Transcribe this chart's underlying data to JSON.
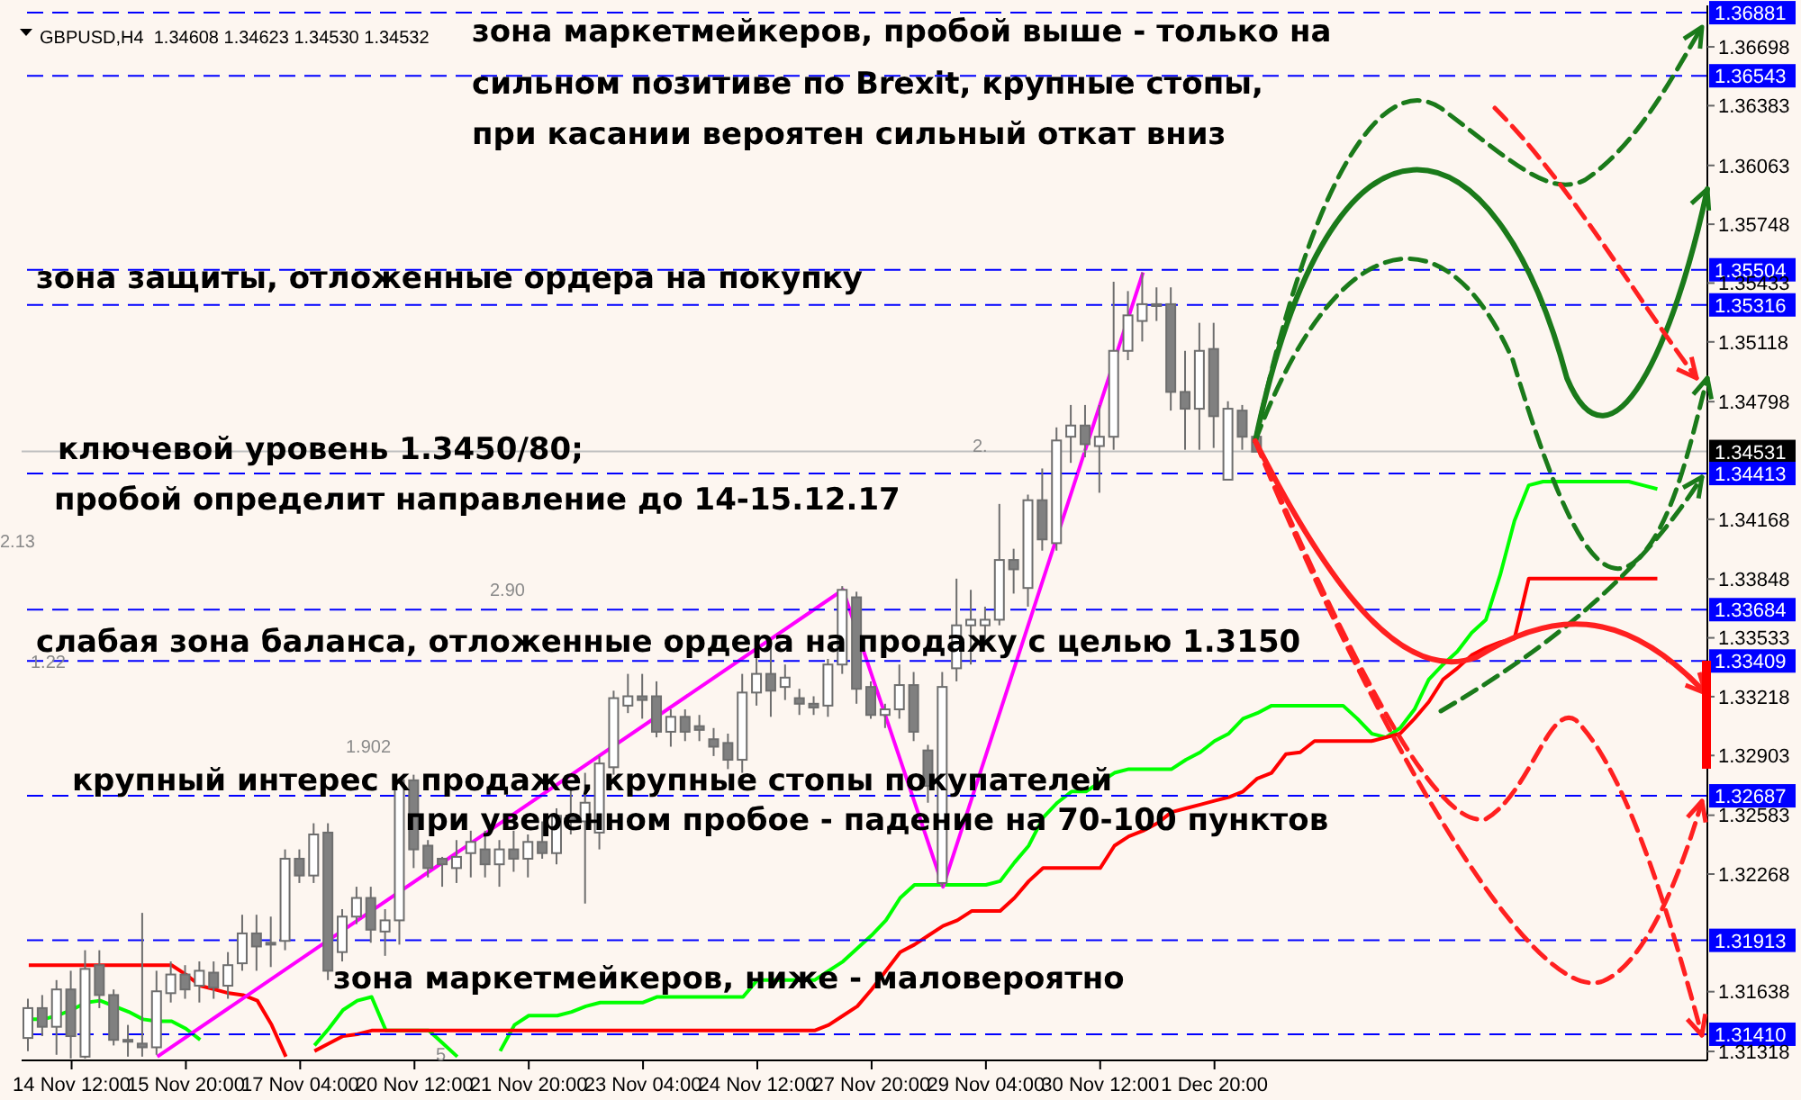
{
  "chart_data": {
    "type": "candlestick",
    "categories": [
      null,
      null,
      null,
      "14 Nov 12:00",
      null,
      null,
      null,
      null,
      null,
      null,
      null,
      "15 Nov 20:00",
      null,
      null,
      null,
      null,
      null,
      null,
      null,
      "17 Nov 04:00",
      null,
      null,
      null,
      null,
      null,
      null,
      null,
      "20 Nov 12:00",
      null,
      null,
      null,
      null,
      null,
      null,
      null,
      "21 Nov 20:00",
      null,
      null,
      null,
      null,
      null,
      null,
      null,
      "23 Nov 04:00",
      null,
      null,
      null,
      null,
      null,
      null,
      null,
      "24 Nov 12:00",
      null,
      null,
      null,
      null,
      null,
      null,
      null,
      "27 Nov 20:00",
      null,
      null,
      null,
      null,
      null,
      null,
      null,
      "29 Nov 04:00",
      null,
      null,
      null,
      null,
      null,
      null,
      null,
      "30 Nov 12:00",
      null,
      null,
      null,
      null,
      null,
      null,
      null,
      "1 Dec 20:00",
      null,
      null,
      null,
      null,
      null,
      null,
      null,
      null,
      null,
      null,
      null,
      null,
      null,
      null,
      null,
      null,
      null,
      null,
      null,
      null,
      null,
      null,
      null,
      null,
      null,
      null,
      null,
      null,
      null,
      null,
      null,
      null,
      null,
      null
    ],
    "ohlc": [
      [
        1.3139,
        1.316,
        1.3132,
        1.3155
      ],
      [
        1.3155,
        1.3162,
        1.314,
        1.3145
      ],
      [
        1.3145,
        1.317,
        1.313,
        1.3165
      ],
      [
        1.3165,
        1.3175,
        1.3128,
        1.314
      ],
      [
        1.3129,
        1.3186,
        1.3128,
        1.3176
      ],
      [
        1.3178,
        1.3186,
        1.3155,
        1.3162
      ],
      [
        1.3162,
        1.3165,
        1.3135,
        1.3138
      ],
      [
        1.3138,
        1.3146,
        1.3129,
        1.3137
      ],
      [
        1.3136,
        1.3206,
        1.3129,
        1.3134
      ],
      [
        1.3134,
        1.3175,
        1.313,
        1.3164
      ],
      [
        1.3163,
        1.318,
        1.3158,
        1.3173
      ],
      [
        1.3173,
        1.3178,
        1.316,
        1.3165
      ],
      [
        1.3167,
        1.318,
        1.3158,
        1.3175
      ],
      [
        1.3174,
        1.318,
        1.316,
        1.3166
      ],
      [
        1.3167,
        1.3185,
        1.316,
        1.3178
      ],
      [
        1.3179,
        1.3205,
        1.3175,
        1.3195
      ],
      [
        1.3195,
        1.3205,
        1.3175,
        1.3188
      ],
      [
        1.319,
        1.3204,
        1.3177,
        1.3189
      ],
      [
        1.3191,
        1.324,
        1.3186,
        1.3235
      ],
      [
        1.3235,
        1.324,
        1.3222,
        1.3226
      ],
      [
        1.3226,
        1.3254,
        1.3222,
        1.3248
      ],
      [
        1.3249,
        1.3254,
        1.317,
        1.3175
      ],
      [
        1.3185,
        1.3208,
        1.318,
        1.3204
      ],
      [
        1.3204,
        1.322,
        1.32,
        1.3214
      ],
      [
        1.3214,
        1.322,
        1.319,
        1.3197
      ],
      [
        1.3196,
        1.3208,
        1.3183,
        1.3202
      ],
      [
        1.3202,
        1.3278,
        1.3189,
        1.3277
      ],
      [
        1.3277,
        1.328,
        1.323,
        1.324
      ],
      [
        1.3242,
        1.3245,
        1.3225,
        1.323
      ],
      [
        1.3235,
        1.3236,
        1.322,
        1.3232
      ],
      [
        1.323,
        1.3245,
        1.3222,
        1.3236
      ],
      [
        1.3238,
        1.325,
        1.3225,
        1.3244
      ],
      [
        1.324,
        1.325,
        1.3225,
        1.3232
      ],
      [
        1.3232,
        1.3245,
        1.322,
        1.324
      ],
      [
        1.324,
        1.325,
        1.3228,
        1.3235
      ],
      [
        1.3235,
        1.3248,
        1.3225,
        1.3244
      ],
      [
        1.3244,
        1.3255,
        1.3235,
        1.3238
      ],
      [
        1.3238,
        1.3262,
        1.3232,
        1.3258
      ],
      [
        1.3258,
        1.3272,
        1.3248,
        1.3255
      ],
      [
        1.3255,
        1.3281,
        1.3211,
        1.3265
      ],
      [
        1.3249,
        1.329,
        1.324,
        1.3286
      ],
      [
        1.3284,
        1.3325,
        1.328,
        1.3321
      ],
      [
        1.3317,
        1.3334,
        1.3313,
        1.3322
      ],
      [
        1.3322,
        1.3334,
        1.331,
        1.332
      ],
      [
        1.3322,
        1.333,
        1.33,
        1.3303
      ],
      [
        1.3303,
        1.3315,
        1.3295,
        1.3311
      ],
      [
        1.3311,
        1.3315,
        1.3298,
        1.3303
      ],
      [
        1.3306,
        1.3312,
        1.3298,
        1.3304
      ],
      [
        1.3299,
        1.3305,
        1.329,
        1.3295
      ],
      [
        1.3297,
        1.3302,
        1.3283,
        1.3288
      ],
      [
        1.3288,
        1.3334,
        1.3281,
        1.3324
      ],
      [
        1.3324,
        1.3348,
        1.3317,
        1.3334
      ],
      [
        1.3334,
        1.3348,
        1.3311,
        1.3325
      ],
      [
        1.3327,
        1.3339,
        1.332,
        1.3332
      ],
      [
        1.3321,
        1.3326,
        1.3312,
        1.3318
      ],
      [
        1.3318,
        1.3322,
        1.3312,
        1.3316
      ],
      [
        1.3317,
        1.3342,
        1.3311,
        1.3339
      ],
      [
        1.3339,
        1.3381,
        1.3334,
        1.3379
      ],
      [
        1.3375,
        1.3378,
        1.3318,
        1.3326
      ],
      [
        1.3327,
        1.333,
        1.331,
        1.3312
      ],
      [
        1.3312,
        1.3318,
        1.3305,
        1.3315
      ],
      [
        1.3315,
        1.3339,
        1.331,
        1.3328
      ],
      [
        1.3328,
        1.3335,
        1.3298,
        1.3303
      ],
      [
        1.3293,
        1.3296,
        1.3265,
        1.3274
      ],
      [
        1.3222,
        1.3335,
        1.322,
        1.3327
      ],
      [
        1.3337,
        1.3385,
        1.333,
        1.336
      ],
      [
        1.336,
        1.3379,
        1.3339,
        1.3363
      ],
      [
        1.336,
        1.337,
        1.335,
        1.3363
      ],
      [
        1.3363,
        1.3425,
        1.336,
        1.3395
      ],
      [
        1.3395,
        1.3401,
        1.3377,
        1.339
      ],
      [
        1.338,
        1.343,
        1.337,
        1.3427
      ],
      [
        1.3427,
        1.3444,
        1.34,
        1.3406
      ],
      [
        1.3404,
        1.3466,
        1.34,
        1.3459
      ],
      [
        1.3461,
        1.3478,
        1.3447,
        1.3467
      ],
      [
        1.3467,
        1.3478,
        1.345,
        1.3457
      ],
      [
        1.3456,
        1.3478,
        1.3431,
        1.3461
      ],
      [
        1.3461,
        1.3544,
        1.3454,
        1.3507
      ],
      [
        1.3507,
        1.3539,
        1.3502,
        1.3526
      ],
      [
        1.3523,
        1.3549,
        1.3512,
        1.3532
      ],
      [
        1.3532,
        1.3541,
        1.3523,
        1.3531
      ],
      [
        1.3532,
        1.3541,
        1.3475,
        1.3485
      ],
      [
        1.3485,
        1.3507,
        1.3454,
        1.3476
      ],
      [
        1.3476,
        1.3522,
        1.3454,
        1.3507
      ],
      [
        1.3508,
        1.3522,
        1.3455,
        1.3472
      ],
      [
        1.3438,
        1.348,
        1.3438,
        1.3476
      ],
      [
        1.3475,
        1.3478,
        1.3454,
        1.3461
      ],
      [
        1.3461,
        1.3462,
        1.3453,
        1.3453
      ],
      null,
      null,
      null,
      null,
      null,
      null,
      null,
      null,
      null,
      null,
      null,
      null,
      null,
      null,
      null,
      null,
      null,
      null,
      null,
      null,
      null,
      null,
      null,
      null,
      null,
      null,
      null,
      null,
      null,
      null,
      null
    ],
    "series": [
      {
        "type": "line",
        "color": "#00ff00",
        "values": [
          1.3149,
          1.3149,
          1.3151,
          1.3154,
          1.3158,
          1.3159,
          1.3156,
          1.3153,
          1.3149,
          1.3148,
          1.3148,
          1.3144,
          1.3138,
          null,
          null,
          null,
          null,
          null,
          null,
          null,
          1.3135,
          1.3144,
          1.3154,
          1.3159,
          1.3161,
          1.3143,
          1.3143,
          1.3143,
          1.3143,
          1.3136,
          1.3129,
          null,
          null,
          1.3132,
          1.3146,
          1.3151,
          1.3151,
          1.3151,
          1.3153,
          1.3156,
          1.3158,
          1.3158,
          1.3158,
          1.3158,
          1.3161,
          1.3161,
          1.3161,
          1.3161,
          1.3161,
          1.3161,
          1.3161,
          1.317,
          1.317,
          1.317,
          1.317,
          1.317,
          1.3175,
          1.318,
          1.3187,
          1.3194,
          1.3202,
          1.3214,
          1.3221,
          1.3221,
          1.3221,
          1.3221,
          1.3221,
          1.3221,
          1.3223,
          1.3233,
          1.3242,
          1.3257,
          1.3265,
          1.3271,
          1.3271,
          1.3276,
          1.3281,
          1.3283,
          1.3283,
          1.3283,
          1.3283,
          1.3288,
          1.3292,
          1.3298,
          1.3302,
          1.331,
          1.3313,
          1.3317,
          1.3317,
          1.3317,
          1.3317,
          1.3317,
          1.3317,
          1.331,
          1.3302,
          1.33,
          1.3305,
          1.3315,
          1.3331,
          1.3339,
          1.3346,
          1.3356,
          1.3363,
          1.3387,
          1.3416,
          1.3435,
          1.3437,
          1.3437,
          1.3437,
          1.3437,
          1.3437,
          1.3437,
          1.3437,
          1.3435,
          1.3433,
          null,
          null,
          null
        ]
      },
      {
        "type": "line",
        "color": "#ff0000",
        "values": [
          1.3178,
          1.3178,
          1.3178,
          1.3178,
          1.3178,
          1.3178,
          1.3178,
          1.3178,
          1.3178,
          1.3178,
          1.3178,
          1.3173,
          1.3167,
          1.3165,
          1.3163,
          1.3162,
          1.3159,
          1.3146,
          1.3129,
          null,
          1.3132,
          1.3136,
          1.314,
          1.3141,
          1.3143,
          1.3143,
          1.3143,
          1.3143,
          1.3143,
          1.3143,
          1.3143,
          1.3143,
          1.3143,
          1.3143,
          1.3143,
          1.3143,
          1.3143,
          1.3143,
          1.3143,
          1.3143,
          1.3143,
          1.3143,
          1.3143,
          1.3143,
          1.3143,
          1.3143,
          1.3143,
          1.3143,
          1.3143,
          1.3143,
          1.3143,
          1.3143,
          1.3143,
          1.3143,
          1.3143,
          1.3143,
          1.3146,
          1.3151,
          1.3156,
          1.3165,
          1.3175,
          1.3185,
          1.3189,
          1.3194,
          1.3199,
          1.3202,
          1.3207,
          1.3207,
          1.3207,
          1.3214,
          1.3223,
          1.323,
          1.323,
          1.323,
          1.323,
          1.323,
          1.3242,
          1.3247,
          1.325,
          1.3254,
          1.326,
          1.3262,
          1.3264,
          1.3266,
          1.3268,
          1.3271,
          1.3278,
          1.3281,
          1.3291,
          1.3292,
          1.3298,
          1.3298,
          1.3298,
          1.3298,
          1.3298,
          1.33,
          1.3302,
          1.331,
          1.3319,
          1.3331,
          1.3337,
          1.3344,
          1.3348,
          1.3351,
          1.3353,
          1.3385,
          1.3385,
          1.3385,
          1.3385,
          1.3385,
          1.3385,
          1.3385,
          1.3385,
          1.3385,
          1.3385,
          null,
          null,
          null
        ]
      },
      {
        "type": "line",
        "color": "#ff00ff",
        "values": [
          null,
          null,
          null,
          null,
          null,
          null,
          null,
          null,
          null,
          1.3129,
          null,
          null,
          null,
          null,
          null,
          null,
          null,
          null,
          null,
          null,
          null,
          null,
          null,
          null,
          null,
          null,
          null,
          null,
          null,
          null,
          null,
          null,
          null,
          null,
          null,
          null,
          null,
          null,
          null,
          null,
          null,
          null,
          null,
          null,
          null,
          null,
          null,
          null,
          null,
          null,
          null,
          null,
          null,
          null,
          null,
          null,
          null,
          1.3379,
          null,
          null,
          null,
          null,
          null,
          null,
          1.322,
          null,
          null,
          null,
          null,
          null,
          null,
          null,
          null,
          null,
          null,
          null,
          null,
          null,
          1.3549,
          null,
          null,
          null,
          null,
          null,
          null,
          null,
          null,
          null,
          null,
          null,
          null,
          null,
          null,
          null,
          null,
          null,
          null,
          null,
          null,
          null,
          null,
          null,
          null,
          null,
          null,
          null,
          null,
          null,
          null,
          null,
          null,
          null,
          null,
          null,
          null,
          null,
          null,
          null
        ]
      }
    ],
    "ylim": [
      1.3127,
      1.3692
    ],
    "yticks": [
      1.36698,
      1.36383,
      1.36063,
      1.35748,
      1.35433,
      1.35118,
      1.34798,
      1.34168,
      1.33848,
      1.33533,
      1.33218,
      1.32903,
      1.32583,
      1.32268,
      1.31638,
      1.31318
    ],
    "ref_lines": [
      {
        "axis": "y",
        "value": 1.36881,
        "label": "1.36881",
        "color": "#0000ff",
        "line_style": "dashed"
      },
      {
        "axis": "y",
        "value": 1.36543,
        "label": "1.36543",
        "color": "#0000ff",
        "line_style": "dashed"
      },
      {
        "axis": "y",
        "value": 1.35504,
        "label": "1.35504",
        "color": "#0000ff",
        "line_style": "dashed"
      },
      {
        "axis": "y",
        "value": 1.35316,
        "label": "1.35316",
        "color": "#0000ff",
        "line_style": "dashed"
      },
      {
        "axis": "y",
        "value": 1.34531,
        "label": "1.34531",
        "color": "#c0c0c0",
        "line_style": "solid"
      },
      {
        "axis": "y",
        "value": 1.34413,
        "label": "1.34413",
        "color": "#0000ff",
        "line_style": "dashed"
      },
      {
        "axis": "y",
        "value": 1.33684,
        "label": "1.33684",
        "color": "#0000ff",
        "line_style": "dashed"
      },
      {
        "axis": "y",
        "value": 1.33409,
        "label": "1.33409",
        "color": "#0000ff",
        "line_style": "dashed"
      },
      {
        "axis": "y",
        "value": 1.32687,
        "label": "1.32687",
        "color": "#0000ff",
        "line_style": "dashed"
      },
      {
        "axis": "y",
        "value": 1.31913,
        "label": "1.31913",
        "color": "#0000ff",
        "line_style": "dashed"
      },
      {
        "axis": "y",
        "value": 1.3141,
        "label": "1.31410",
        "color": "#0000ff",
        "line_style": "dashed"
      }
    ],
    "annotations": [
      "GBPUSD,H4  1.34608 1.34623 1.34530 1.34532",
      "зона маркетмейкеров, пробой выше - только на\nсильном позитиве по Brexit, крупные стопы,\nпри касании вероятен сильный откат вниз",
      "зона защиты, отложенные ордера на покупку",
      "ключевой уровень 1.3450/80;\nпробой определит направление до 14-15.12.17",
      "слабая зона баланса, отложенные ордера на продажу с целью 1.3150",
      "крупный интерес к продаже, крупные стопы покупателей\nпри уверенном пробое - падение на 70-100 пунктов",
      "зона маркетмейкеров, ниже - маловероятно",
      "2.13",
      "1.22",
      "2.90",
      "1.902",
      "2.",
      "5"
    ]
  }
}
